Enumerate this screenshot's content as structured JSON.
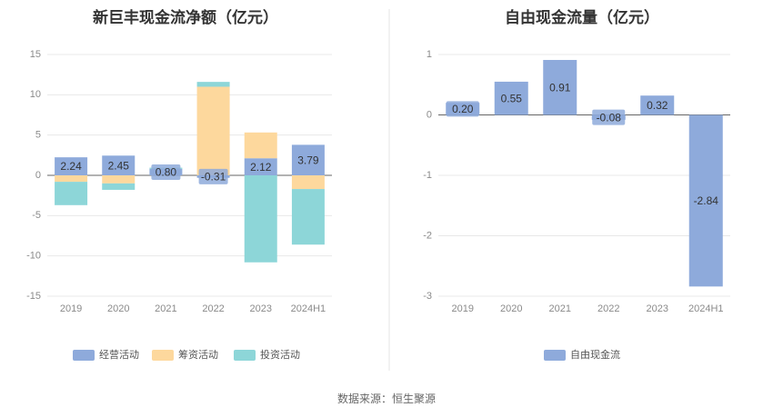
{
  "chart_data": [
    {
      "type": "bar",
      "stacked": true,
      "title": "新巨丰现金流净额（亿元）",
      "categories": [
        "2019",
        "2020",
        "2021",
        "2022",
        "2023",
        "2024H1"
      ],
      "ylim": [
        -15,
        15
      ],
      "yticks": [
        15,
        10,
        5,
        0,
        -5,
        -10,
        -15
      ],
      "grid": true,
      "legend_position": "bottom",
      "series": [
        {
          "name": "经营活动",
          "color": "#8eaadb",
          "values": [
            2.24,
            2.45,
            0.8,
            -0.31,
            2.12,
            3.79
          ]
        },
        {
          "name": "筹资活动",
          "color": "#fdd89d",
          "values": [
            -0.8,
            -1.0,
            0.0,
            11.0,
            3.2,
            -1.7
          ]
        },
        {
          "name": "投资活动",
          "color": "#8dd6d8",
          "values": [
            -2.9,
            -0.8,
            0.15,
            0.6,
            -10.8,
            -6.9
          ]
        }
      ],
      "data_labels": [
        "2.24",
        "2.45",
        "0.80",
        "-0.31",
        "2.12",
        "3.79"
      ]
    },
    {
      "type": "bar",
      "title": "自由现金流量（亿元）",
      "categories": [
        "2019",
        "2020",
        "2021",
        "2022",
        "2023",
        "2024H1"
      ],
      "ylim": [
        -3,
        1
      ],
      "yticks": [
        1,
        0,
        -1,
        -2,
        -3
      ],
      "grid": true,
      "legend_position": "bottom",
      "series": [
        {
          "name": "自由现金流",
          "color": "#8eaadb",
          "values": [
            0.2,
            0.55,
            0.91,
            -0.08,
            0.32,
            -2.84
          ]
        }
      ],
      "data_labels": [
        "0.20",
        "0.55",
        "0.91",
        "-0.08",
        "0.32",
        "-2.84"
      ]
    }
  ],
  "source": "数据来源：恒生聚源"
}
